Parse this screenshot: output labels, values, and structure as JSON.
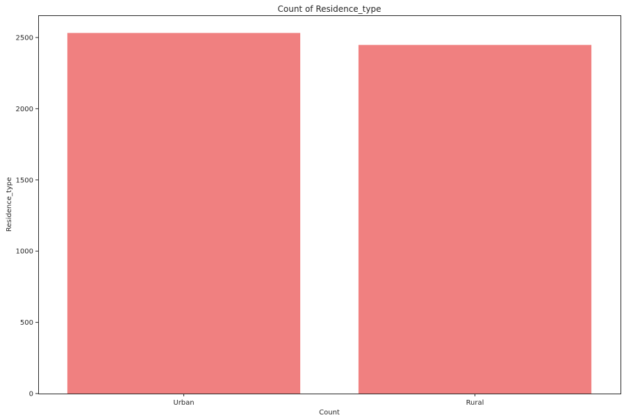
{
  "chart_data": {
    "type": "bar",
    "title": "Count of Residence_type",
    "xlabel": "Count",
    "ylabel": "Residence_type",
    "categories": [
      "Urban",
      "Rural"
    ],
    "values": [
      2532,
      2448
    ],
    "ylim": [
      0,
      2656
    ],
    "yticks": [
      0,
      500,
      1000,
      1500,
      2000,
      2500
    ],
    "ytick_labels": [
      "0",
      "500",
      "1000",
      "1500",
      "2000",
      "2500"
    ],
    "bar_color": "#F08080",
    "grid": false
  }
}
